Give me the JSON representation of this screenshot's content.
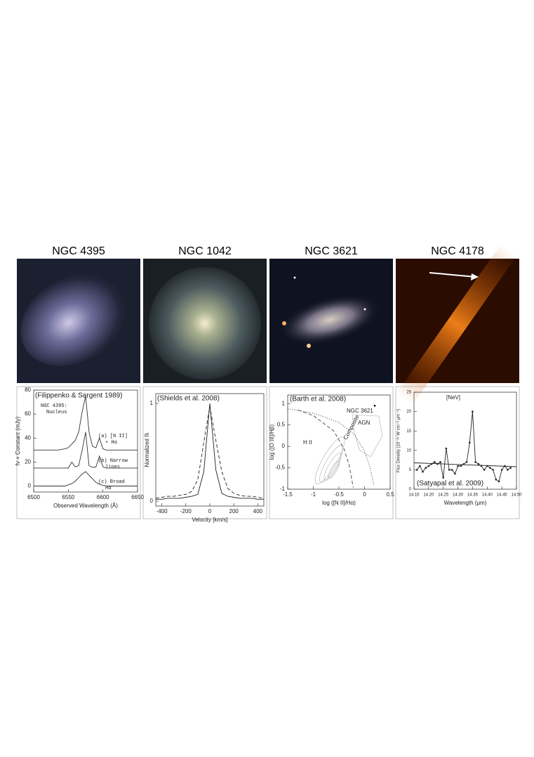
{
  "panels": [
    {
      "title": "NGC 4395"
    },
    {
      "title": "NGC 1042"
    },
    {
      "title": "NGC 3621"
    },
    {
      "title": "NGC 4178"
    }
  ],
  "chart_data": [
    {
      "type": "line",
      "xlabel": "Observed Wavelength (Å)",
      "ylabel": "fν + Constant (mJy)",
      "annotations": [
        "(Filippenko & Sargent 1989)",
        "NGC 4395:",
        "Nucleus",
        "(a) [N II]",
        "+ Hα",
        "(b) Narrow",
        "lines",
        "(c) Broad",
        "Hα"
      ],
      "xlim": [
        6500,
        6650
      ],
      "xticks": [
        6500,
        6550,
        6600,
        6650
      ],
      "ylim": [
        -5,
        80
      ],
      "yticks": [
        0,
        20,
        40,
        60,
        80
      ],
      "x": [
        6500,
        6505,
        6510,
        6515,
        6520,
        6525,
        6530,
        6535,
        6540,
        6545,
        6550,
        6555,
        6560,
        6565,
        6570,
        6575,
        6580,
        6585,
        6590,
        6595,
        6600,
        6605,
        6610,
        6615,
        6620,
        6625,
        6630,
        6635,
        6640,
        6645,
        6650
      ],
      "series": [
        {
          "color": "#333",
          "values": [
            30,
            30,
            30,
            30,
            30,
            30,
            30,
            30,
            30.5,
            31,
            32,
            35,
            38,
            45,
            62,
            75,
            45,
            33,
            32,
            40,
            31,
            30,
            30,
            30,
            30,
            30,
            30,
            30,
            30,
            30,
            30
          ]
        },
        {
          "color": "#333",
          "values": [
            15,
            15,
            15,
            15,
            15,
            15,
            15,
            15,
            15,
            15,
            15,
            20,
            16,
            17,
            30,
            45,
            17,
            15.5,
            16,
            25,
            16,
            15,
            15,
            15,
            15,
            15,
            15,
            15,
            15,
            15,
            15
          ]
        },
        {
          "color": "#333",
          "values": [
            0,
            0,
            0,
            0,
            0,
            0,
            0,
            0,
            0,
            0,
            1,
            2,
            4,
            7,
            10,
            12,
            9,
            6,
            3,
            1.5,
            0.5,
            0,
            0,
            0,
            0,
            0,
            0,
            0,
            0,
            0,
            0
          ]
        }
      ]
    },
    {
      "type": "line",
      "xlabel": "Velocity [km/s]",
      "ylabel": "Normalized fλ",
      "annotations": [
        "(Shields et al. 2008)"
      ],
      "xlim": [
        -450,
        450
      ],
      "xticks": [
        -400,
        -200,
        0,
        200,
        400
      ],
      "ylim": [
        -0.05,
        1.1
      ],
      "yticks": [
        0,
        1
      ],
      "x": [
        -450,
        -400,
        -350,
        -300,
        -250,
        -200,
        -150,
        -100,
        -50,
        0,
        50,
        100,
        150,
        200,
        250,
        300,
        350,
        400,
        450
      ],
      "series": [
        {
          "color": "#222",
          "values": [
            0.02,
            0.02,
            0.03,
            0.03,
            0.03,
            0.04,
            0.05,
            0.07,
            0.3,
            1.0,
            0.32,
            0.08,
            0.05,
            0.04,
            0.03,
            0.03,
            0.03,
            0.02,
            0.02
          ]
        },
        {
          "color": "#222",
          "dash": "dashed",
          "values": [
            0.03,
            0.04,
            0.05,
            0.05,
            0.06,
            0.07,
            0.1,
            0.22,
            0.6,
            0.97,
            0.62,
            0.3,
            0.13,
            0.08,
            0.06,
            0.05,
            0.05,
            0.04,
            0.03
          ]
        }
      ]
    },
    {
      "type": "scatter",
      "xlabel": "log ([N II]/Hα)",
      "ylabel": "log ([O III]/Hβ)",
      "annotations": [
        "(Barth et al. 2008)",
        "NGC 3621",
        "AGN",
        "Composite",
        "H II"
      ],
      "xlim": [
        -1.5,
        0.5
      ],
      "xticks": [
        -1.5,
        -1,
        -0.5,
        0,
        0.5
      ],
      "ylim": [
        -1,
        1.2
      ],
      "yticks": [
        -1,
        -0.5,
        0,
        0.5,
        1
      ],
      "series": [
        {
          "color": "#444",
          "dash": "dotted",
          "x": [
            -1.5,
            -1,
            -0.5,
            -0.2,
            0,
            0.1,
            0.18
          ],
          "values": [
            0.88,
            0.78,
            0.56,
            0.28,
            -0.11,
            -0.46,
            -0.89
          ]
        },
        {
          "color": "#444",
          "dash": "dashed",
          "x": [
            -1.3,
            -1,
            -0.6,
            -0.4,
            -0.3,
            -0.22
          ],
          "values": [
            0.85,
            0.72,
            0.36,
            -0.06,
            -0.44,
            -0.96
          ]
        },
        {
          "color": "#000",
          "line": false,
          "markers": true,
          "x": [
            0.2
          ],
          "values": [
            0.95
          ]
        }
      ]
    },
    {
      "type": "line",
      "xlabel": "Wavelength (μm)",
      "ylabel": "Flux Density (10⁻¹⁶ W cm⁻² μm⁻¹)",
      "annotations": [
        "[NeV]",
        "(Satyapal et al. 2009)"
      ],
      "xlim": [
        14.15,
        14.5
      ],
      "xticks": [
        14.15,
        {
          "value": 14.2,
          "label": "14.20"
        },
        14.25,
        {
          "value": 14.3,
          "label": "14.30"
        },
        14.35,
        {
          "value": 14.4,
          "label": "14.40"
        },
        14.45,
        {
          "value": 14.5,
          "label": "14.50"
        }
      ],
      "ylim": [
        0,
        25
      ],
      "yticks": [
        0,
        5,
        10,
        15,
        20,
        25
      ],
      "x": [
        14.16,
        14.17,
        14.18,
        14.19,
        14.2,
        14.21,
        14.22,
        14.23,
        14.24,
        14.25,
        14.26,
        14.27,
        14.28,
        14.29,
        14.3,
        14.31,
        14.32,
        14.33,
        14.34,
        14.35,
        14.36,
        14.37,
        14.38,
        14.39,
        14.4,
        14.41,
        14.42,
        14.43,
        14.44,
        14.45,
        14.46,
        14.47,
        14.48
      ],
      "series": [
        {
          "color": "#222",
          "markers": true,
          "values": [
            5,
            6,
            4.5,
            5.5,
            6,
            6.5,
            7,
            6.5,
            7,
            3,
            10.5,
            5,
            5,
            4,
            6,
            6,
            6.5,
            7,
            12,
            20,
            7,
            6.5,
            6,
            5,
            6,
            5.5,
            5,
            2.5,
            2,
            5,
            6,
            5,
            5.5
          ]
        },
        {
          "color": "#222",
          "x": [
            14.15,
            14.5
          ],
          "values": [
            6.8,
            5.8
          ]
        }
      ]
    }
  ]
}
